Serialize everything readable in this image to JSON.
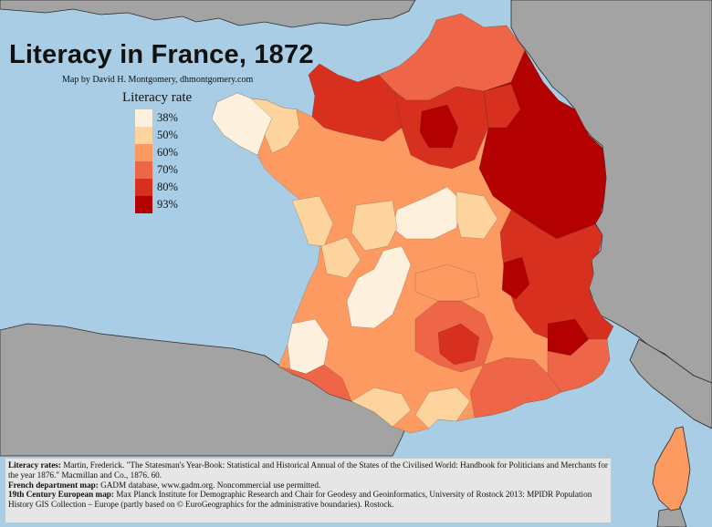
{
  "map": {
    "title": "Literacy in France, 1872",
    "byline": "Map by David H. Montgomery, dhmontgomery.com",
    "colors": {
      "sea": "#a9cde4",
      "neighbor_land": "#a3a3a3",
      "border": "#2a2a2a"
    },
    "legend": {
      "title": "Literacy rate",
      "items": [
        {
          "label": "38%",
          "color": "#fdf0dc"
        },
        {
          "label": "50%",
          "color": "#fdd49e"
        },
        {
          "label": "60%",
          "color": "#fc9a62"
        },
        {
          "label": "70%",
          "color": "#ef6548"
        },
        {
          "label": "80%",
          "color": "#d7301f"
        },
        {
          "label": "93%",
          "color": "#b30000"
        }
      ]
    },
    "sources": [
      {
        "label": "Literacy rates:",
        "text": " Martin, Frederick. \"The Statesman's Year-Book: Statistical and Historical Annual of the States of the Civilised World: Handbook for Politicians and Merchants for the year 1876.\" Macmillan and Co., 1876. 60."
      },
      {
        "label": "French department map:",
        "text": " GADM database, www.gadm.org. Noncommercial use permitted."
      },
      {
        "label": "19th Century European map:",
        "text": " Max Planck Institute for Demographic Research and Chair for Geodesy and Geoinformatics, University of Rostock 2013: MPIDR Population History GIS Collection – Europe (partly based on © EuroGeographics for the administrative boundaries). Rostock."
      }
    ]
  }
}
